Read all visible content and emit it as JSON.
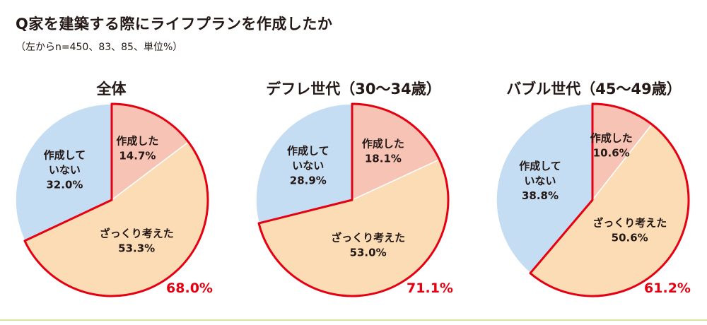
{
  "header": {
    "title": "Q家を建築する際にライフプランを作成したか",
    "subtitle": "（左からn=450、83、85、単位%）"
  },
  "colors": {
    "made": "#f6c3b4",
    "rough": "#fbdcb4",
    "not_made": "#c5ddf2",
    "highlight_outline": "#e50012",
    "outline": "#ffffff"
  },
  "chart_data": [
    {
      "type": "pie",
      "title": "全体",
      "n": 450,
      "slices": [
        {
          "label_lines": [
            "作成した"
          ],
          "value": 14.7,
          "value_text": "14.7%",
          "color": "#f6c3b4"
        },
        {
          "label_lines": [
            "ざっくり考えた"
          ],
          "value": 53.3,
          "value_text": "53.3%",
          "color": "#fbdcb4"
        },
        {
          "label_lines": [
            "作成して",
            "いない"
          ],
          "value": 32.0,
          "value_text": "32.0%",
          "color": "#c5ddf2"
        }
      ],
      "highlight": {
        "value": 68.0,
        "text": "68.0%",
        "slices": [
          0,
          1
        ]
      }
    },
    {
      "type": "pie",
      "title": "デフレ世代（30〜34歳）",
      "n": 83,
      "slices": [
        {
          "label_lines": [
            "作成した"
          ],
          "value": 18.1,
          "value_text": "18.1%",
          "color": "#f6c3b4"
        },
        {
          "label_lines": [
            "ざっくり考えた"
          ],
          "value": 53.0,
          "value_text": "53.0%",
          "color": "#fbdcb4"
        },
        {
          "label_lines": [
            "作成して",
            "いない"
          ],
          "value": 28.9,
          "value_text": "28.9%",
          "color": "#c5ddf2"
        }
      ],
      "highlight": {
        "value": 71.1,
        "text": "71.1%",
        "slices": [
          0,
          1
        ]
      }
    },
    {
      "type": "pie",
      "title": "バブル世代（45〜49歳）",
      "n": 85,
      "slices": [
        {
          "label_lines": [
            "作成した"
          ],
          "value": 10.6,
          "value_text": "10.6%",
          "color": "#f6c3b4"
        },
        {
          "label_lines": [
            "ざっくり考えた"
          ],
          "value": 50.6,
          "value_text": "50.6%",
          "color": "#fbdcb4"
        },
        {
          "label_lines": [
            "作成して",
            "いない"
          ],
          "value": 38.8,
          "value_text": "38.8%",
          "color": "#c5ddf2"
        }
      ],
      "highlight": {
        "value": 61.2,
        "text": "61.2%",
        "slices": [
          0,
          1
        ]
      }
    }
  ]
}
